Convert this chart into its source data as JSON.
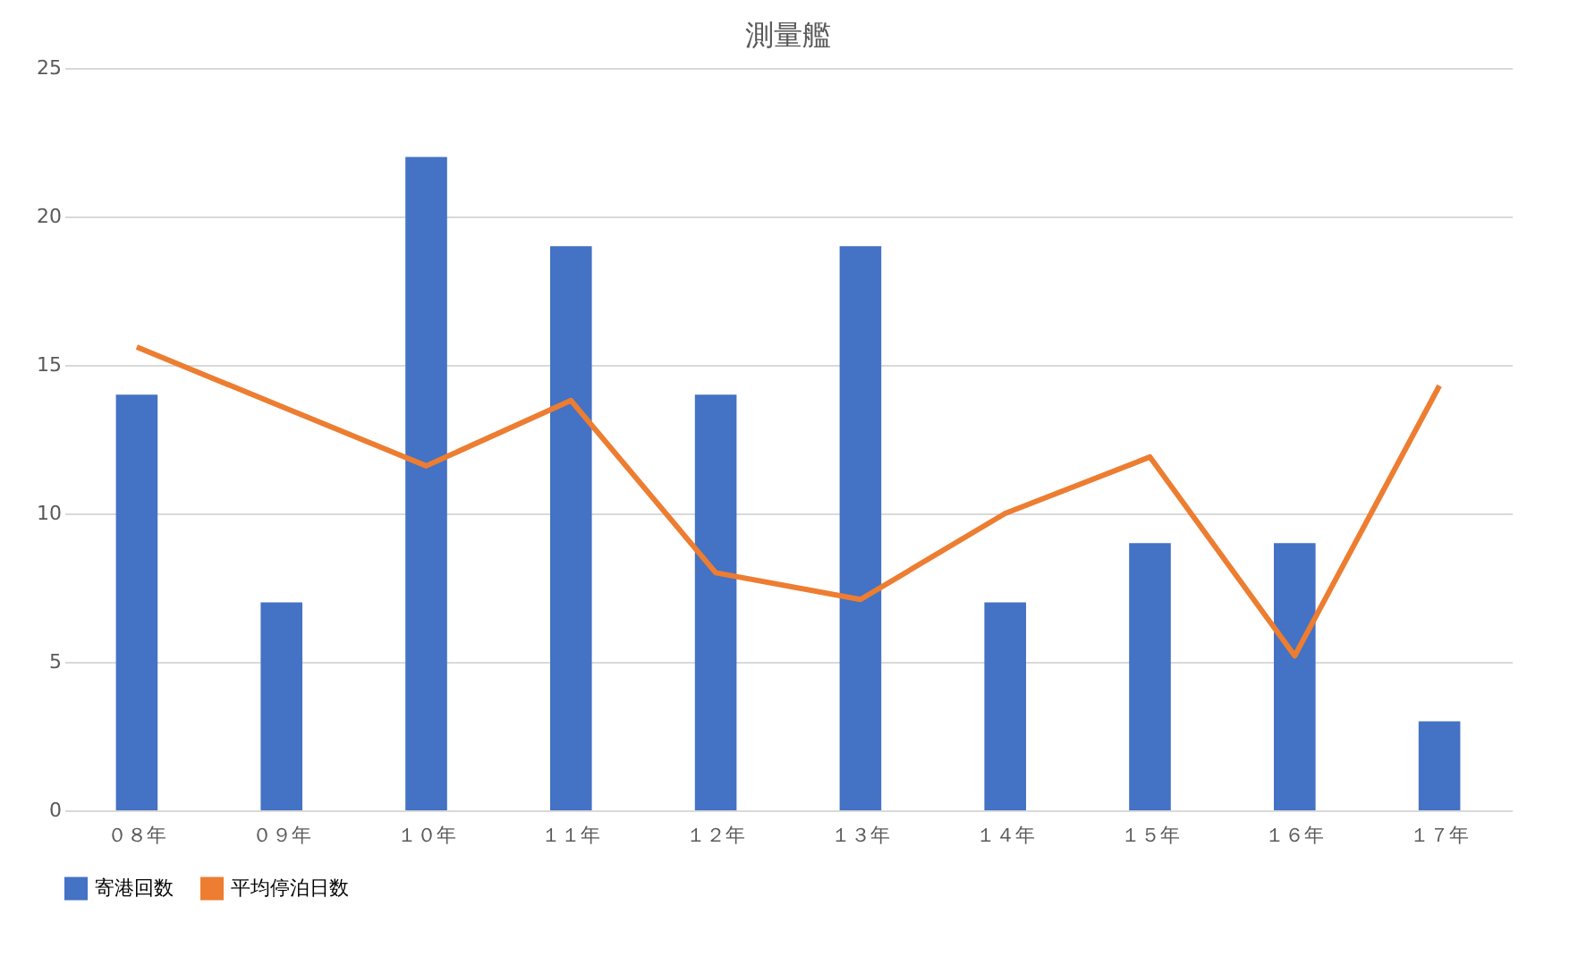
{
  "chart_data": {
    "type": "bar",
    "title": "測量艦",
    "categories": [
      "０８年",
      "０９年",
      "１０年",
      "１１年",
      "１２年",
      "１３年",
      "１４年",
      "１５年",
      "１６年",
      "１７年"
    ],
    "series": [
      {
        "name": "寄港回数",
        "color": "#4472c4",
        "values": [
          14,
          7,
          22,
          19,
          14,
          19,
          7,
          9,
          9,
          3
        ]
      },
      {
        "name": "平均停泊日数",
        "type": "line",
        "color": "#ed7d31",
        "values": [
          15.6,
          13.6,
          11.6,
          13.8,
          8.0,
          7.1,
          10.0,
          11.9,
          5.2,
          14.3
        ]
      }
    ],
    "ylim": [
      0,
      25
    ],
    "yticks": [
      0,
      5,
      10,
      15,
      20,
      25
    ],
    "grid": "y",
    "legend": "bottom",
    "marker": "none",
    "line_style": "solid"
  }
}
